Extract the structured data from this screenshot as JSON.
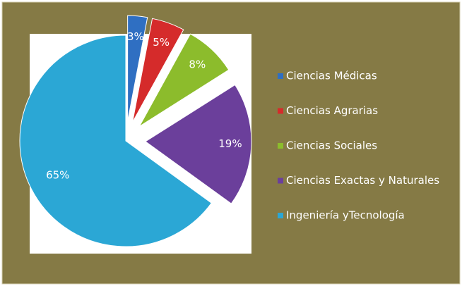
{
  "chart_data": {
    "type": "pie",
    "categories": [
      "Ciencias Médicas",
      "Ciencias Agrarias",
      "Ciencias Sociales",
      "Ciencias Exactas y  Naturales",
      "Ingeniería yTecnología"
    ],
    "values": [
      3,
      5,
      8,
      19,
      65
    ],
    "value_labels": [
      "3%",
      "5%",
      "8%",
      "19%",
      "65%"
    ],
    "colors": [
      "#2f6fc2",
      "#d52b2b",
      "#8cbc2c",
      "#6b3f9b",
      "#2ba7d5"
    ],
    "exploded": [
      true,
      true,
      true,
      true,
      false
    ]
  }
}
